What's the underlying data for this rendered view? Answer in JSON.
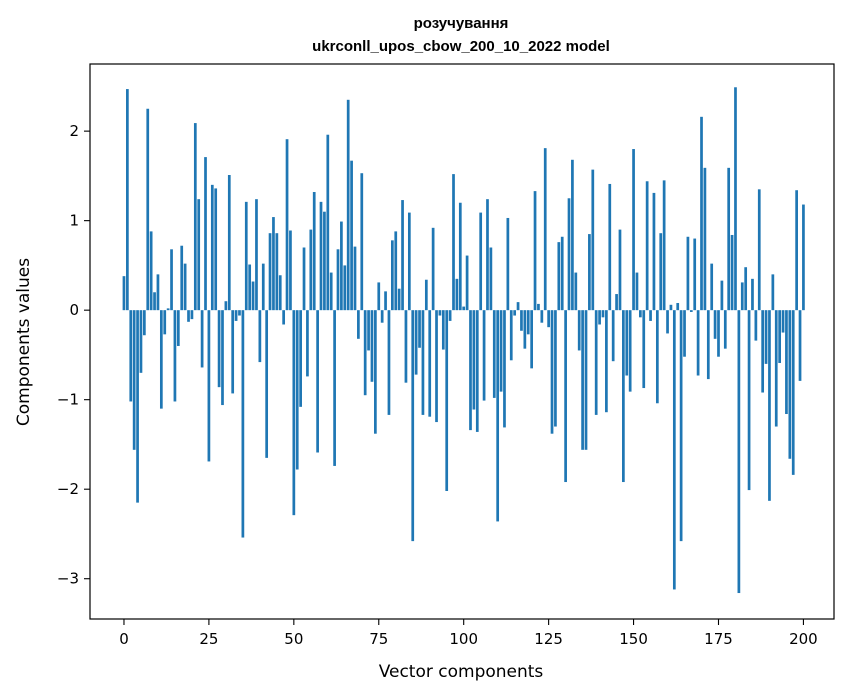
{
  "chart_data": {
    "type": "bar",
    "title": "розучування",
    "subtitle": "ukrconll_upos_cbow_200_10_2022 model",
    "xlabel": "Vector components",
    "ylabel": "Components values",
    "xlim": [
      -10,
      209
    ],
    "ylim": [
      -3.45,
      2.75
    ],
    "x_ticks": [
      0,
      25,
      50,
      75,
      100,
      125,
      150,
      175,
      200
    ],
    "y_ticks": [
      -3,
      -2,
      -1,
      0,
      1,
      2
    ],
    "grid": false,
    "legend": "none",
    "bar_color": "#1f77b4",
    "values": [
      0.38,
      2.47,
      -1.02,
      -1.56,
      -2.15,
      -0.7,
      -0.28,
      2.25,
      0.88,
      0.2,
      0.4,
      -1.1,
      -0.27,
      0.02,
      0.68,
      -1.02,
      -0.4,
      0.72,
      0.52,
      -0.13,
      -0.1,
      2.09,
      1.24,
      -0.64,
      1.71,
      -1.69,
      1.4,
      1.36,
      -0.86,
      -1.06,
      0.1,
      1.51,
      -0.93,
      -0.12,
      -0.06,
      -2.54,
      1.21,
      0.51,
      0.32,
      1.24,
      -0.58,
      0.52,
      -1.65,
      0.86,
      1.04,
      0.86,
      0.39,
      -0.16,
      1.91,
      0.89,
      -2.29,
      -1.78,
      -1.08,
      0.7,
      -0.74,
      0.9,
      1.32,
      -1.59,
      1.21,
      1.1,
      1.96,
      0.42,
      -1.74,
      0.68,
      0.99,
      0.5,
      2.35,
      1.67,
      0.71,
      -0.32,
      1.53,
      -0.95,
      -0.45,
      -0.8,
      -1.38,
      0.31,
      -0.14,
      0.21,
      -1.17,
      0.78,
      0.88,
      0.24,
      1.23,
      -0.81,
      1.09,
      -2.58,
      -0.72,
      -0.42,
      -1.17,
      0.34,
      -1.19,
      0.92,
      -1.25,
      -0.06,
      -0.44,
      -2.02,
      -0.12,
      1.52,
      0.35,
      1.2,
      0.04,
      0.61,
      -1.34,
      -1.11,
      -1.36,
      1.09,
      -1.01,
      1.24,
      0.7,
      -0.98,
      -2.36,
      -0.91,
      -1.31,
      1.03,
      -0.56,
      -0.06,
      0.09,
      -0.23,
      -0.43,
      -0.27,
      -0.65,
      1.33,
      0.07,
      -0.14,
      1.81,
      -0.19,
      -1.38,
      -1.3,
      0.76,
      0.82,
      -1.92,
      1.25,
      1.68,
      0.42,
      -0.45,
      -1.56,
      -1.56,
      0.85,
      1.57,
      -1.17,
      -0.16,
      -0.08,
      -1.14,
      1.41,
      -0.57,
      0.18,
      0.9,
      -1.92,
      -0.73,
      -0.91,
      1.8,
      0.42,
      -0.08,
      -0.87,
      1.44,
      -0.12,
      1.31,
      -1.04,
      0.86,
      1.45,
      -0.26,
      0.06,
      -3.12,
      0.08,
      -2.58,
      -0.52,
      0.82,
      -0.02,
      0.8,
      -0.73,
      2.16,
      1.59,
      -0.77,
      0.52,
      -0.32,
      -0.52,
      0.33,
      -0.43,
      1.59,
      0.84,
      2.49,
      -3.16,
      0.31,
      0.48,
      -2.01,
      0.35,
      -0.34,
      1.35,
      -0.92,
      -0.6,
      -2.13,
      0.4,
      -1.3,
      -0.59,
      -0.25,
      -1.16,
      -1.66,
      -1.84,
      1.34,
      -0.79,
      1.18
    ]
  }
}
